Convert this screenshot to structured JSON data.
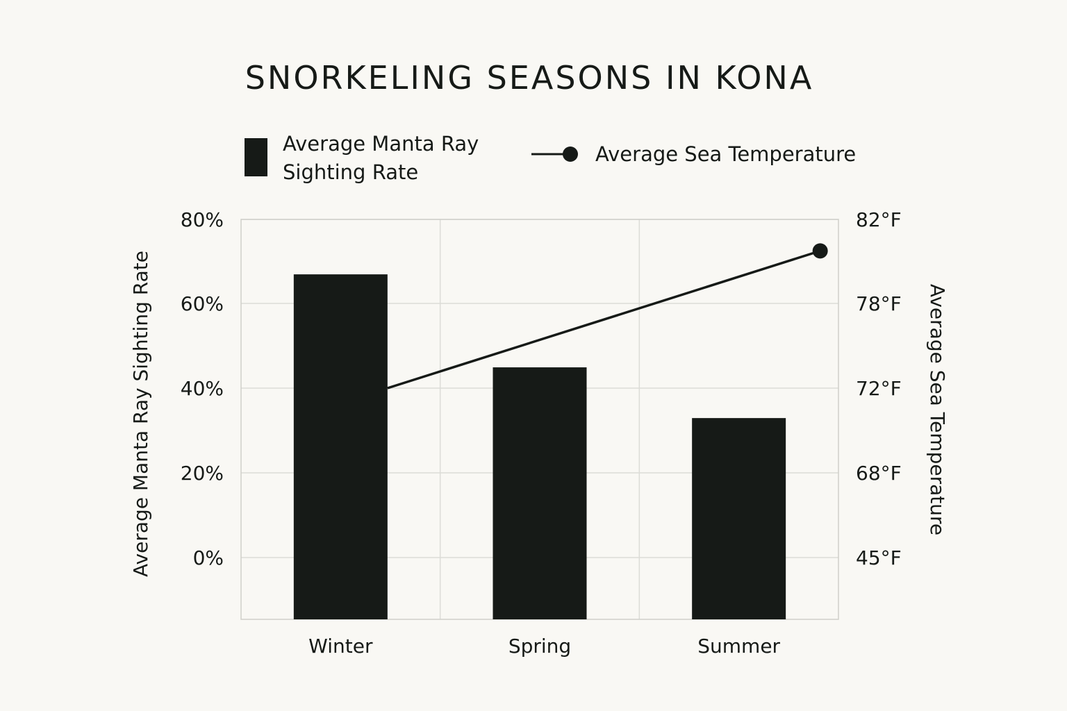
{
  "chart_data": {
    "type": "bar",
    "title": "SNORKELING SEASONS IN KONA",
    "categories": [
      "Winter",
      "Spring",
      "Summer"
    ],
    "series": [
      {
        "name": "Average Manta Ray Sighting Rate",
        "legend_lines": [
          "Average Manta Ray",
          "Sighting Rate"
        ],
        "type": "bar",
        "axis": "left",
        "values": [
          67,
          45,
          33
        ]
      },
      {
        "name": "Average Sea Temperature",
        "type": "line",
        "axis": "right",
        "values": [
          72,
          null,
          80.5
        ]
      }
    ],
    "y_left": {
      "label": "Average Manta Ray Sighting Rate",
      "ticks": [
        80,
        60,
        40,
        20,
        0
      ],
      "tick_labels": [
        "80%",
        "60%",
        "40%",
        "20%",
        "0%"
      ],
      "range": [
        0,
        80
      ]
    },
    "y_right": {
      "label": "Average Sea Temperature",
      "ticks": [
        82,
        78,
        72,
        68,
        45
      ],
      "tick_labels": [
        "82°F",
        "78°F",
        "72°F",
        "68°F",
        "45°F"
      ]
    },
    "legend_position": "top",
    "grid": true,
    "colors": {
      "bar": "#161a17",
      "line": "#161a17",
      "background": "#f9f8f4",
      "grid": "#dcdcd7"
    }
  }
}
